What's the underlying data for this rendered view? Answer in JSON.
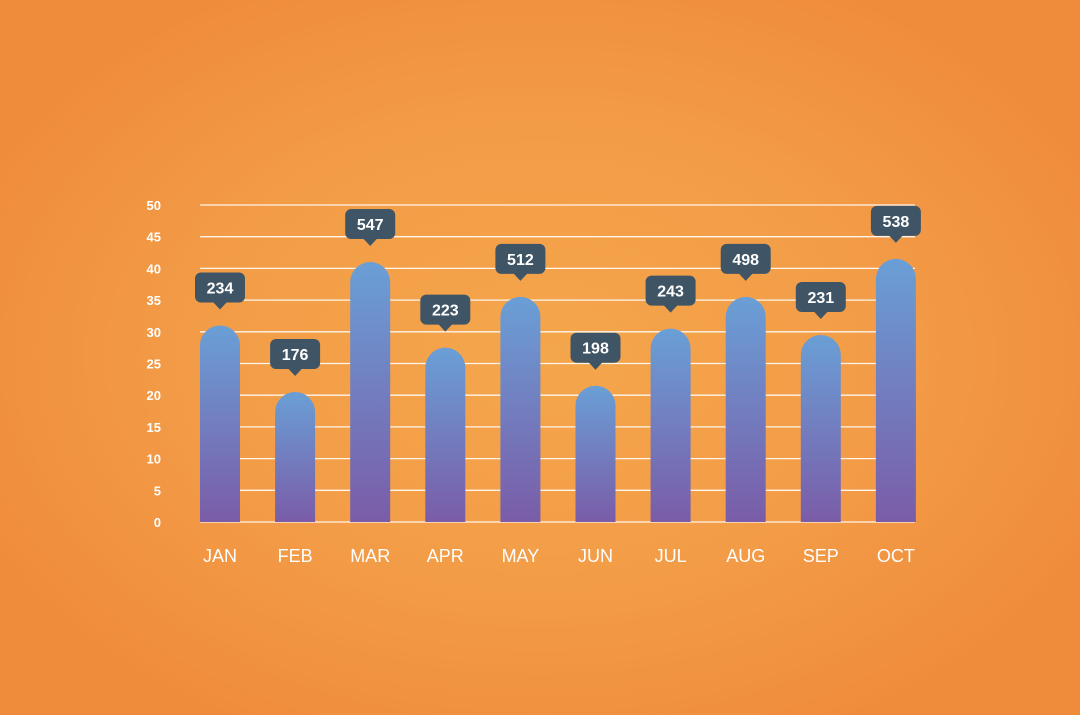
{
  "chart_data": {
    "type": "bar",
    "title": "",
    "xlabel": "",
    "ylabel": "",
    "categories": [
      "JAN",
      "FEB",
      "MAR",
      "APR",
      "MAY",
      "JUN",
      "JUL",
      "AUG",
      "SEP",
      "OCT"
    ],
    "values": [
      31,
      20.5,
      41,
      27.5,
      35.5,
      21.5,
      30.5,
      35.5,
      29.5,
      41.5
    ],
    "data_labels": [
      "234",
      "176",
      "547",
      "223",
      "512",
      "198",
      "243",
      "498",
      "231",
      "538"
    ],
    "ylim": [
      0,
      50
    ],
    "yticks": [
      "0",
      "5",
      "10",
      "15",
      "20",
      "25",
      "30",
      "35",
      "40",
      "45",
      "50"
    ],
    "grid": true,
    "legend": "none"
  },
  "colors": {
    "background": "#f39c47",
    "bar_top": "#6a9fd6",
    "bar_bottom": "#7a5ca8",
    "gridline": "#ffffff",
    "tooltip": "#3f5566",
    "text": "#ffffff"
  }
}
